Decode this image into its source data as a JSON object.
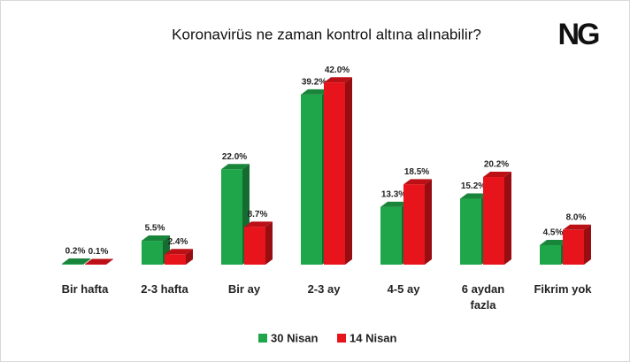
{
  "chart_data": {
    "type": "bar3d",
    "title": "Koronavirüs ne zaman kontrol altına alınabilir?",
    "logo": "NG",
    "categories": [
      "Bir hafta",
      "2-3 hafta",
      "Bir ay",
      "2-3 ay",
      "4-5 ay",
      "6 aydan fazla",
      "Fikrim yok"
    ],
    "series": [
      {
        "name": "30 Nisan",
        "color": "#1fa64a",
        "values": [
          0.2,
          5.5,
          22.0,
          39.2,
          13.3,
          15.2,
          4.5
        ],
        "value_labels": [
          "0.2%",
          "5.5%",
          "22.0%",
          "39.2%",
          "13.3%",
          "15.2%",
          "4.5%"
        ]
      },
      {
        "name": "14 Nisan",
        "color": "#e8141c",
        "values": [
          0.1,
          2.4,
          8.7,
          42.0,
          18.5,
          20.2,
          8.0
        ],
        "value_labels": [
          "0.1%",
          "2.4%",
          "8.7%",
          "42.0%",
          "18.5%",
          "20.2%",
          "8.0%"
        ]
      }
    ],
    "legend": "bottom"
  }
}
